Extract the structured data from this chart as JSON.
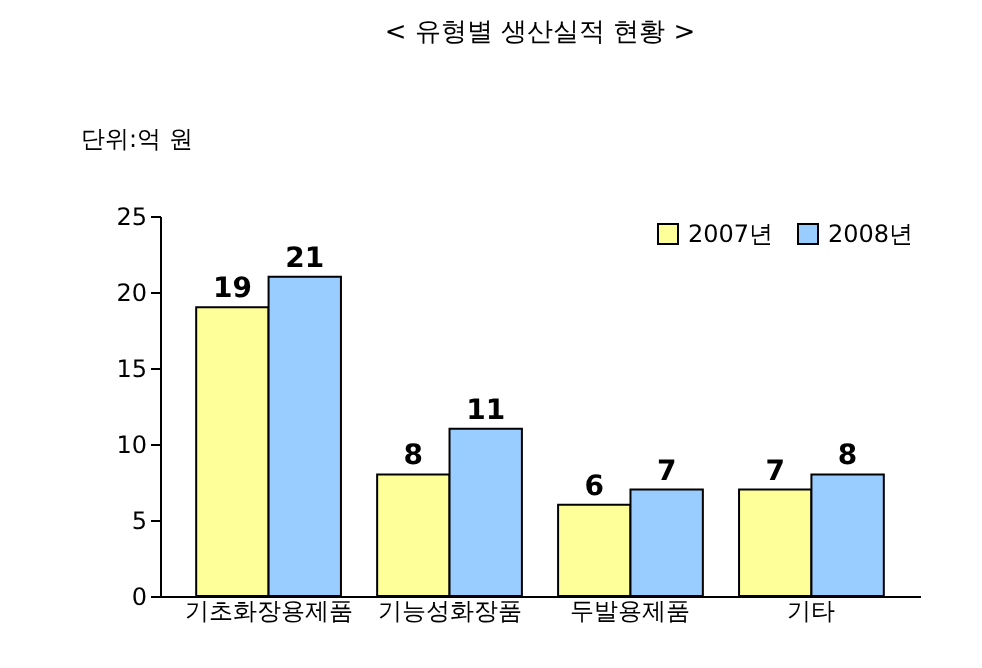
{
  "chart_data": {
    "type": "bar",
    "title": "< 유형별 생산실적 현황 >",
    "ylabel": "단위:억 원",
    "categories": [
      "기초화장용제품",
      "기능성화장품",
      "두발용제품",
      "기타"
    ],
    "series": [
      {
        "name": "2007년",
        "color": "#ffff99",
        "values": [
          19,
          8,
          6,
          7
        ]
      },
      {
        "name": "2008년",
        "color": "#99ccff",
        "values": [
          21,
          11,
          7,
          8
        ]
      }
    ],
    "ylim": [
      0,
      25
    ],
    "yticks": [
      0,
      5,
      10,
      15,
      20,
      25
    ],
    "grid": false,
    "legend": "top right",
    "data_labels": true
  }
}
